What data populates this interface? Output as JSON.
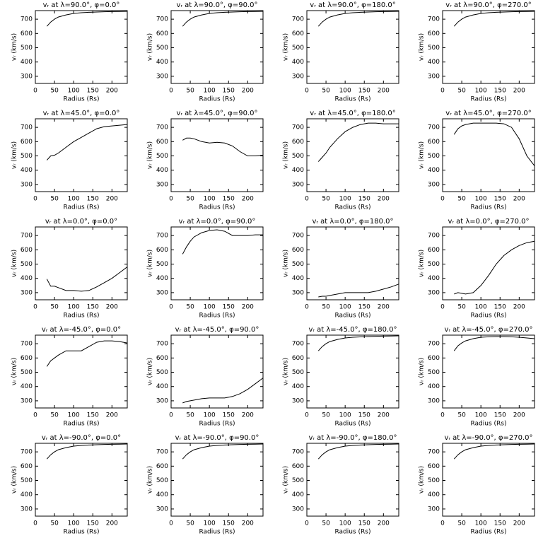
{
  "chart_data": [
    {
      "type": "line",
      "title": "vᵣ at λ=90.0°, φ=0.0°",
      "xlabel": "Radius (Rs)",
      "ylabel": "vᵣ (km/s)",
      "x": [
        30,
        40,
        50,
        60,
        80,
        100,
        120,
        140,
        160,
        180,
        200,
        220,
        240
      ],
      "values": [
        650,
        680,
        700,
        715,
        730,
        740,
        745,
        748,
        750,
        752,
        753,
        754,
        755
      ],
      "xlim": [
        0,
        240
      ],
      "ylim": [
        250,
        760
      ],
      "xticks": [
        0,
        50,
        100,
        150,
        200
      ],
      "yticks": [
        300,
        400,
        500,
        600,
        700
      ],
      "color": "#000000"
    },
    {
      "type": "line",
      "title": "vᵣ at λ=90.0°, φ=90.0°",
      "xlabel": "Radius (Rs)",
      "ylabel": "vᵣ (km/s)",
      "x": [
        30,
        40,
        50,
        60,
        80,
        100,
        120,
        140,
        160,
        180,
        200,
        220,
        240
      ],
      "values": [
        650,
        680,
        700,
        715,
        730,
        740,
        745,
        748,
        750,
        752,
        753,
        754,
        755
      ],
      "xlim": [
        0,
        240
      ],
      "ylim": [
        250,
        760
      ],
      "xticks": [
        0,
        50,
        100,
        150,
        200
      ],
      "yticks": [
        300,
        400,
        500,
        600,
        700
      ],
      "color": "#000000"
    },
    {
      "type": "line",
      "title": "vᵣ at λ=90.0°, φ=180.0°",
      "xlabel": "Radius (Rs)",
      "ylabel": "vᵣ (km/s)",
      "x": [
        30,
        40,
        50,
        60,
        80,
        100,
        120,
        140,
        160,
        180,
        200,
        220,
        240
      ],
      "values": [
        650,
        680,
        700,
        715,
        730,
        740,
        745,
        748,
        750,
        752,
        753,
        754,
        755
      ],
      "xlim": [
        0,
        240
      ],
      "ylim": [
        250,
        760
      ],
      "xticks": [
        0,
        50,
        100,
        150,
        200
      ],
      "yticks": [
        300,
        400,
        500,
        600,
        700
      ],
      "color": "#000000"
    },
    {
      "type": "line",
      "title": "vᵣ at λ=90.0°, φ=270.0°",
      "xlabel": "Radius (Rs)",
      "ylabel": "vᵣ (km/s)",
      "x": [
        30,
        40,
        50,
        60,
        80,
        100,
        120,
        140,
        160,
        180,
        200,
        220,
        240
      ],
      "values": [
        650,
        680,
        700,
        715,
        730,
        740,
        745,
        748,
        750,
        752,
        753,
        754,
        755
      ],
      "xlim": [
        0,
        240
      ],
      "ylim": [
        250,
        760
      ],
      "xticks": [
        0,
        50,
        100,
        150,
        200
      ],
      "yticks": [
        300,
        400,
        500,
        600,
        700
      ],
      "color": "#000000"
    },
    {
      "type": "line",
      "title": "vᵣ at λ=45.0°, φ=0.0°",
      "xlabel": "Radius (Rs)",
      "ylabel": "vᵣ (km/s)",
      "x": [
        30,
        40,
        50,
        60,
        80,
        100,
        120,
        140,
        160,
        180,
        200,
        220,
        240
      ],
      "values": [
        470,
        500,
        505,
        520,
        560,
        600,
        630,
        660,
        690,
        705,
        710,
        715,
        720
      ],
      "xlim": [
        0,
        240
      ],
      "ylim": [
        250,
        760
      ],
      "xticks": [
        0,
        50,
        100,
        150,
        200
      ],
      "yticks": [
        300,
        400,
        500,
        600,
        700
      ],
      "color": "#000000"
    },
    {
      "type": "line",
      "title": "vᵣ at λ=45.0°, φ=90.0°",
      "xlabel": "Radius (Rs)",
      "ylabel": "vᵣ (km/s)",
      "x": [
        30,
        40,
        50,
        60,
        80,
        100,
        120,
        140,
        160,
        180,
        200,
        220,
        240
      ],
      "values": [
        610,
        625,
        625,
        620,
        600,
        590,
        595,
        590,
        570,
        530,
        500,
        500,
        505
      ],
      "xlim": [
        0,
        240
      ],
      "ylim": [
        250,
        760
      ],
      "xticks": [
        0,
        50,
        100,
        150,
        200
      ],
      "yticks": [
        300,
        400,
        500,
        600,
        700
      ],
      "color": "#000000"
    },
    {
      "type": "line",
      "title": "vᵣ at λ=45.0°, φ=180.0°",
      "xlabel": "Radius (Rs)",
      "ylabel": "vᵣ (km/s)",
      "x": [
        30,
        40,
        50,
        60,
        80,
        100,
        120,
        140,
        160,
        180,
        200,
        220,
        240
      ],
      "values": [
        460,
        490,
        520,
        560,
        620,
        670,
        700,
        720,
        730,
        730,
        725,
        725,
        725
      ],
      "xlim": [
        0,
        240
      ],
      "ylim": [
        250,
        760
      ],
      "xticks": [
        0,
        50,
        100,
        150,
        200
      ],
      "yticks": [
        300,
        400,
        500,
        600,
        700
      ],
      "color": "#000000"
    },
    {
      "type": "line",
      "title": "vᵣ at λ=45.0°, φ=270.0°",
      "xlabel": "Radius (Rs)",
      "ylabel": "vᵣ (km/s)",
      "x": [
        30,
        40,
        50,
        60,
        80,
        100,
        120,
        140,
        160,
        180,
        200,
        220,
        240
      ],
      "values": [
        650,
        690,
        710,
        720,
        730,
        730,
        730,
        730,
        725,
        700,
        620,
        500,
        430
      ],
      "xlim": [
        0,
        240
      ],
      "ylim": [
        250,
        760
      ],
      "xticks": [
        0,
        50,
        100,
        150,
        200
      ],
      "yticks": [
        300,
        400,
        500,
        600,
        700
      ],
      "color": "#000000"
    },
    {
      "type": "line",
      "title": "vᵣ at λ=0.0°, φ=0.0°",
      "xlabel": "Radius (Rs)",
      "ylabel": "vᵣ (km/s)",
      "x": [
        30,
        40,
        50,
        60,
        80,
        100,
        120,
        140,
        160,
        180,
        200,
        220,
        240
      ],
      "values": [
        395,
        345,
        345,
        335,
        315,
        315,
        310,
        315,
        340,
        370,
        400,
        440,
        480
      ],
      "xlim": [
        0,
        240
      ],
      "ylim": [
        250,
        760
      ],
      "xticks": [
        0,
        50,
        100,
        150,
        200
      ],
      "yticks": [
        300,
        400,
        500,
        600,
        700
      ],
      "color": "#000000"
    },
    {
      "type": "line",
      "title": "vᵣ at λ=0.0°, φ=90.0°",
      "xlabel": "Radius (Rs)",
      "ylabel": "vᵣ (km/s)",
      "x": [
        30,
        40,
        50,
        60,
        80,
        100,
        120,
        140,
        160,
        180,
        200,
        220,
        240
      ],
      "values": [
        570,
        620,
        660,
        690,
        720,
        735,
        740,
        730,
        700,
        700,
        700,
        705,
        705
      ],
      "xlim": [
        0,
        240
      ],
      "ylim": [
        250,
        760
      ],
      "xticks": [
        0,
        50,
        100,
        150,
        200
      ],
      "yticks": [
        300,
        400,
        500,
        600,
        700
      ],
      "color": "#000000"
    },
    {
      "type": "line",
      "title": "vᵣ at λ=0.0°, φ=180.0°",
      "xlabel": "Radius (Rs)",
      "ylabel": "vᵣ (km/s)",
      "x": [
        30,
        40,
        50,
        60,
        80,
        100,
        120,
        140,
        160,
        180,
        200,
        220,
        240
      ],
      "values": [
        270,
        275,
        275,
        280,
        290,
        300,
        300,
        300,
        300,
        310,
        325,
        340,
        360
      ],
      "xlim": [
        0,
        240
      ],
      "ylim": [
        250,
        760
      ],
      "xticks": [
        0,
        50,
        100,
        150,
        200
      ],
      "yticks": [
        300,
        400,
        500,
        600,
        700
      ],
      "color": "#000000"
    },
    {
      "type": "line",
      "title": "vᵣ at λ=0.0°, φ=270.0°",
      "xlabel": "Radius (Rs)",
      "ylabel": "vᵣ (km/s)",
      "x": [
        30,
        40,
        50,
        60,
        80,
        100,
        120,
        140,
        160,
        180,
        200,
        220,
        240
      ],
      "values": [
        290,
        300,
        295,
        290,
        300,
        350,
        420,
        500,
        560,
        600,
        630,
        650,
        660
      ],
      "xlim": [
        0,
        240
      ],
      "ylim": [
        250,
        760
      ],
      "xticks": [
        0,
        50,
        100,
        150,
        200
      ],
      "yticks": [
        300,
        400,
        500,
        600,
        700
      ],
      "color": "#000000"
    },
    {
      "type": "line",
      "title": "vᵣ at λ=-45.0°, φ=0.0°",
      "xlabel": "Radius (Rs)",
      "ylabel": "vᵣ (km/s)",
      "x": [
        30,
        40,
        50,
        60,
        80,
        100,
        120,
        140,
        160,
        180,
        200,
        220,
        240
      ],
      "values": [
        540,
        580,
        600,
        620,
        650,
        650,
        650,
        680,
        710,
        720,
        720,
        715,
        705
      ],
      "xlim": [
        0,
        240
      ],
      "ylim": [
        250,
        760
      ],
      "xticks": [
        0,
        50,
        100,
        150,
        200
      ],
      "yticks": [
        300,
        400,
        500,
        600,
        700
      ],
      "color": "#000000"
    },
    {
      "type": "line",
      "title": "vᵣ at λ=-45.0°, φ=90.0°",
      "xlabel": "Radius (Rs)",
      "ylabel": "vᵣ (km/s)",
      "x": [
        30,
        40,
        50,
        60,
        80,
        100,
        120,
        140,
        160,
        180,
        200,
        220,
        240
      ],
      "values": [
        285,
        295,
        300,
        305,
        315,
        320,
        320,
        320,
        330,
        350,
        380,
        420,
        460
      ],
      "xlim": [
        0,
        240
      ],
      "ylim": [
        250,
        760
      ],
      "xticks": [
        0,
        50,
        100,
        150,
        200
      ],
      "yticks": [
        300,
        400,
        500,
        600,
        700
      ],
      "color": "#000000"
    },
    {
      "type": "line",
      "title": "vᵣ at λ=-45.0°, φ=180.0°",
      "xlabel": "Radius (Rs)",
      "ylabel": "vᵣ (km/s)",
      "x": [
        30,
        40,
        50,
        60,
        80,
        100,
        120,
        140,
        160,
        180,
        200,
        220,
        240
      ],
      "values": [
        650,
        680,
        700,
        715,
        730,
        740,
        745,
        748,
        750,
        752,
        753,
        754,
        755
      ],
      "xlim": [
        0,
        240
      ],
      "ylim": [
        250,
        760
      ],
      "xticks": [
        0,
        50,
        100,
        150,
        200
      ],
      "yticks": [
        300,
        400,
        500,
        600,
        700
      ],
      "color": "#000000"
    },
    {
      "type": "line",
      "title": "vᵣ at λ=-45.0°, φ=270.0°",
      "xlabel": "Radius (Rs)",
      "ylabel": "vᵣ (km/s)",
      "x": [
        30,
        40,
        50,
        60,
        80,
        100,
        120,
        140,
        160,
        180,
        200,
        220,
        240
      ],
      "values": [
        650,
        685,
        705,
        720,
        735,
        745,
        748,
        750,
        750,
        748,
        745,
        740,
        735
      ],
      "xlim": [
        0,
        240
      ],
      "ylim": [
        250,
        760
      ],
      "xticks": [
        0,
        50,
        100,
        150,
        200
      ],
      "yticks": [
        300,
        400,
        500,
        600,
        700
      ],
      "color": "#000000"
    },
    {
      "type": "line",
      "title": "vᵣ at λ=-90.0°, φ=0.0°",
      "xlabel": "Radius (Rs)",
      "ylabel": "vᵣ (km/s)",
      "x": [
        30,
        40,
        50,
        60,
        80,
        100,
        120,
        140,
        160,
        180,
        200,
        220,
        240
      ],
      "values": [
        650,
        680,
        700,
        715,
        730,
        740,
        745,
        748,
        750,
        752,
        753,
        754,
        755
      ],
      "xlim": [
        0,
        240
      ],
      "ylim": [
        250,
        760
      ],
      "xticks": [
        0,
        50,
        100,
        150,
        200
      ],
      "yticks": [
        300,
        400,
        500,
        600,
        700
      ],
      "color": "#000000"
    },
    {
      "type": "line",
      "title": "vᵣ at λ=-90.0°, φ=90.0°",
      "xlabel": "Radius (Rs)",
      "ylabel": "vᵣ (km/s)",
      "x": [
        30,
        40,
        50,
        60,
        80,
        100,
        120,
        140,
        160,
        180,
        200,
        220,
        240
      ],
      "values": [
        650,
        680,
        700,
        715,
        730,
        740,
        745,
        748,
        750,
        752,
        753,
        754,
        755
      ],
      "xlim": [
        0,
        240
      ],
      "ylim": [
        250,
        760
      ],
      "xticks": [
        0,
        50,
        100,
        150,
        200
      ],
      "yticks": [
        300,
        400,
        500,
        600,
        700
      ],
      "color": "#000000"
    },
    {
      "type": "line",
      "title": "vᵣ at λ=-90.0°, φ=180.0°",
      "xlabel": "Radius (Rs)",
      "ylabel": "vᵣ (km/s)",
      "x": [
        30,
        40,
        50,
        60,
        80,
        100,
        120,
        140,
        160,
        180,
        200,
        220,
        240
      ],
      "values": [
        650,
        680,
        700,
        715,
        730,
        740,
        745,
        748,
        750,
        752,
        753,
        754,
        755
      ],
      "xlim": [
        0,
        240
      ],
      "ylim": [
        250,
        760
      ],
      "xticks": [
        0,
        50,
        100,
        150,
        200
      ],
      "yticks": [
        300,
        400,
        500,
        600,
        700
      ],
      "color": "#000000"
    },
    {
      "type": "line",
      "title": "vᵣ at λ=-90.0°, φ=270.0°",
      "xlabel": "Radius (Rs)",
      "ylabel": "vᵣ (km/s)",
      "x": [
        30,
        40,
        50,
        60,
        80,
        100,
        120,
        140,
        160,
        180,
        200,
        220,
        240
      ],
      "values": [
        650,
        680,
        700,
        715,
        730,
        740,
        745,
        748,
        750,
        752,
        753,
        754,
        755
      ],
      "xlim": [
        0,
        240
      ],
      "ylim": [
        250,
        760
      ],
      "xticks": [
        0,
        50,
        100,
        150,
        200
      ],
      "yticks": [
        300,
        400,
        500,
        600,
        700
      ],
      "color": "#000000"
    }
  ]
}
